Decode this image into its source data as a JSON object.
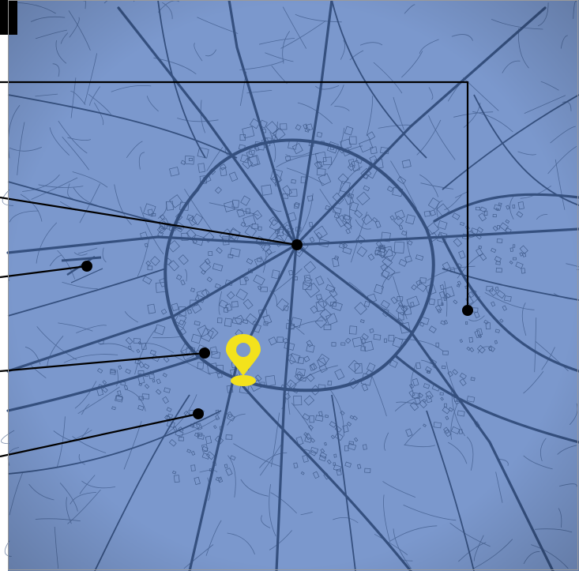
{
  "map": {
    "background_color": "#7b98cd",
    "road_color": "#35507f",
    "leader_line_color": "#000000",
    "marker_color": "#000000",
    "pin_color": "#f3e21c",
    "pin_icon": "location-pin-icon",
    "callout_markers": [
      {
        "name": "callout-marker-northeast"
      },
      {
        "name": "callout-marker-downtown"
      },
      {
        "name": "callout-marker-airport"
      },
      {
        "name": "callout-marker-southwest"
      },
      {
        "name": "callout-marker-south"
      }
    ]
  }
}
